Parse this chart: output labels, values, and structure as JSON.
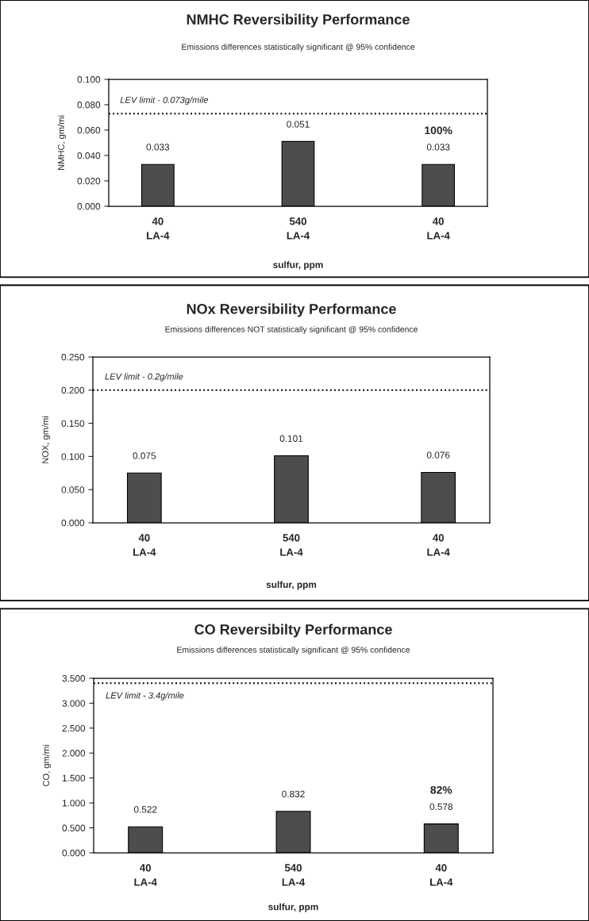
{
  "chart_data": [
    {
      "type": "bar",
      "title": "NMHC Reversibility Performance",
      "subtitle": "Emissions differences statistically significant @ 95% confidence",
      "xlabel": "sulfur, ppm",
      "ylabel": "NMHC, gm/mi",
      "categories": [
        "40\nLA-4",
        "540\nLA-4",
        "40\nLA-4"
      ],
      "values": [
        0.033,
        0.051,
        0.033
      ],
      "color": "#4d4d4d",
      "data_labels": true,
      "grid": false,
      "ylim": [
        0,
        0.1
      ],
      "yticks": [
        {
          "value": 0,
          "label": "0.000"
        },
        {
          "value": 0.02,
          "label": "0.020"
        },
        {
          "value": 0.04,
          "label": "0.040"
        },
        {
          "value": 0.06,
          "label": "0.060"
        },
        {
          "value": 0.08,
          "label": "0.080"
        },
        {
          "value": 0.1,
          "label": "0.100"
        }
      ],
      "ref_lines": [
        {
          "axis": "y",
          "value": 0.073,
          "label": "LEV limit - 0.073g/mile",
          "color": "#000000",
          "line_style": "dotted"
        }
      ],
      "annotations": [
        "100%"
      ]
    },
    {
      "type": "bar",
      "title": "NOx Reversibility Performance",
      "subtitle": "Emissions differences NOT statistically significant @ 95% confidence",
      "xlabel": "sulfur, ppm",
      "ylabel": "NOX, gm/mi",
      "categories": [
        "40\nLA-4",
        "540\nLA-4",
        "40\nLA-4"
      ],
      "values": [
        0.075,
        0.101,
        0.076
      ],
      "color": "#4d4d4d",
      "data_labels": true,
      "grid": false,
      "ylim": [
        0,
        0.25
      ],
      "yticks": [
        {
          "value": 0,
          "label": "0.000"
        },
        {
          "value": 0.05,
          "label": "0.050"
        },
        {
          "value": 0.1,
          "label": "0.100"
        },
        {
          "value": 0.15,
          "label": "0.150"
        },
        {
          "value": 0.2,
          "label": "0.200"
        },
        {
          "value": 0.25,
          "label": "0.250"
        }
      ],
      "ref_lines": [
        {
          "axis": "y",
          "value": 0.2,
          "label": "LEV limit - 0.2g/mile",
          "color": "#000000",
          "line_style": "dotted"
        }
      ]
    },
    {
      "type": "bar",
      "title": "CO Reversibilty Performance",
      "subtitle": "Emissions differences statistically significant @ 95% confidence",
      "xlabel": "sulfur, ppm",
      "ylabel": "CO, gm/mi",
      "categories": [
        "40\nLA-4",
        "540\nLA-4",
        "40\nLA-4"
      ],
      "values": [
        0.522,
        0.832,
        0.578
      ],
      "color": "#4d4d4d",
      "data_labels": true,
      "grid": false,
      "ylim": [
        0,
        3.5
      ],
      "yticks": [
        {
          "value": 0,
          "label": "0.000"
        },
        {
          "value": 0.5,
          "label": "0.500"
        },
        {
          "value": 1,
          "label": "1.000"
        },
        {
          "value": 1.5,
          "label": "1.500"
        },
        {
          "value": 2,
          "label": "2.000"
        },
        {
          "value": 2.5,
          "label": "2.500"
        },
        {
          "value": 3,
          "label": "3.000"
        },
        {
          "value": 3.5,
          "label": "3.500"
        }
      ],
      "ref_lines": [
        {
          "axis": "y",
          "value": 3.4,
          "label": "LEV limit - 3.4g/mile",
          "color": "#000000",
          "line_style": "dotted"
        }
      ],
      "annotations": [
        "82%"
      ]
    }
  ]
}
